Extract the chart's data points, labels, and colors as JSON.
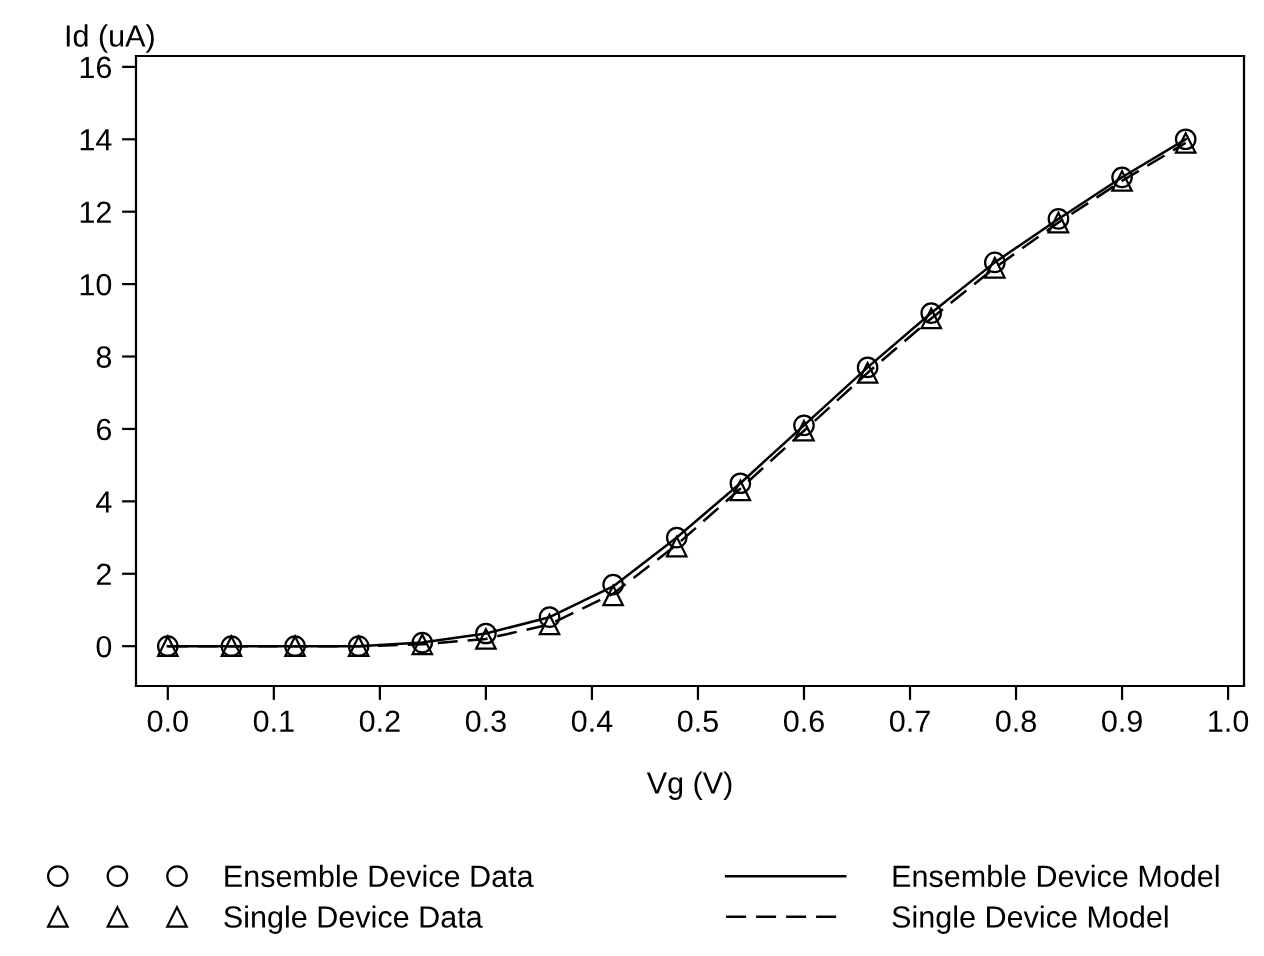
{
  "chart_data": {
    "type": "scatter",
    "xlabel": "Vg (V)",
    "ylabel": "Id (uA)",
    "x": [
      0.0,
      0.06,
      0.12,
      0.18,
      0.24,
      0.3,
      0.36,
      0.42,
      0.48,
      0.54,
      0.6,
      0.66,
      0.72,
      0.78,
      0.84,
      0.9,
      0.96
    ],
    "series": [
      {
        "name": "Ensemble Device Data",
        "marker": "circle",
        "color": "#000000",
        "values": [
          0,
          0,
          0,
          0,
          0.1,
          0.35,
          0.8,
          1.7,
          3.0,
          4.5,
          6.1,
          7.7,
          9.2,
          10.6,
          11.8,
          12.95,
          14.0
        ]
      },
      {
        "name": "Single Device Data",
        "marker": "triangle",
        "color": "#000000",
        "values": [
          0,
          0,
          0,
          0,
          0.05,
          0.2,
          0.6,
          1.4,
          2.75,
          4.3,
          5.95,
          7.55,
          9.05,
          10.45,
          11.7,
          12.85,
          13.9
        ]
      },
      {
        "name": "Ensemble Device Model",
        "type": "line",
        "line_style": "solid",
        "color": "#000000",
        "values": [
          0,
          0,
          0,
          0,
          0.1,
          0.35,
          0.8,
          1.65,
          3.0,
          4.5,
          6.1,
          7.7,
          9.2,
          10.6,
          11.8,
          12.95,
          14.0
        ]
      },
      {
        "name": "Single Device Model",
        "type": "line",
        "line_style": "dashed",
        "color": "#000000",
        "values": [
          0,
          0,
          0,
          0,
          0.05,
          0.2,
          0.6,
          1.45,
          2.8,
          4.35,
          5.95,
          7.55,
          9.05,
          10.45,
          11.7,
          12.85,
          13.9
        ]
      }
    ],
    "xlim": [
      -0.03,
      1.015
    ],
    "ylim": [
      -1.1,
      16.3
    ],
    "xticks": [
      {
        "value": 0.0,
        "label": "0.0"
      },
      {
        "value": 0.1,
        "label": "0.1"
      },
      {
        "value": 0.2,
        "label": "0.2"
      },
      {
        "value": 0.3,
        "label": "0.3"
      },
      {
        "value": 0.4,
        "label": "0.4"
      },
      {
        "value": 0.5,
        "label": "0.5"
      },
      {
        "value": 0.6,
        "label": "0.6"
      },
      {
        "value": 0.7,
        "label": "0.7"
      },
      {
        "value": 0.8,
        "label": "0.8"
      },
      {
        "value": 0.9,
        "label": "0.9"
      },
      {
        "value": 1.0,
        "label": "1.0"
      }
    ],
    "yticks": [
      0,
      2,
      4,
      6,
      8,
      10,
      12,
      14,
      16
    ],
    "grid": false,
    "legend": "bottom"
  }
}
